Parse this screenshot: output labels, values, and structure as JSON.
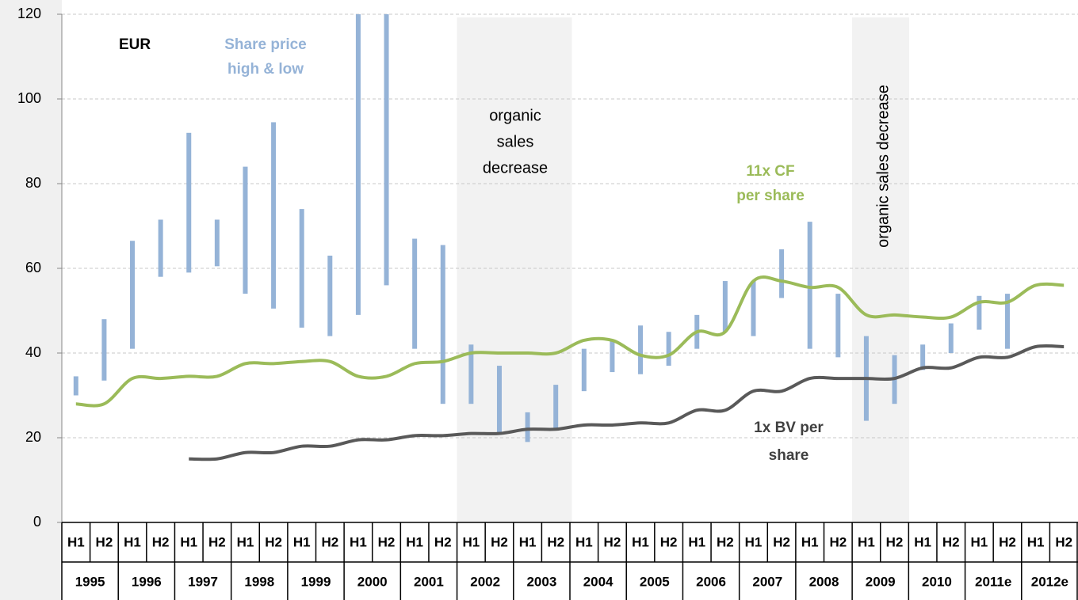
{
  "chart_data": {
    "type": "range-bar-and-line",
    "unit_label": "EUR",
    "categories": [
      "H1",
      "H2",
      "H1",
      "H2",
      "H1",
      "H2",
      "H1",
      "H2",
      "H1",
      "H2",
      "H1",
      "H2",
      "H1",
      "H2",
      "H1",
      "H2",
      "H1",
      "H2",
      "H1",
      "H2",
      "H1",
      "H2",
      "H1",
      "H2",
      "H1",
      "H2",
      "H1",
      "H2",
      "H1",
      "H2",
      "H1",
      "H2",
      "H1",
      "H2",
      "H1",
      "H2"
    ],
    "years": [
      "1995",
      "1996",
      "1997",
      "1998",
      "1999",
      "2000",
      "2001",
      "2002",
      "2003",
      "2004",
      "2005",
      "2006",
      "2007",
      "2008",
      "2009",
      "2010",
      "2011e",
      "2012e"
    ],
    "ylim": [
      0,
      120
    ],
    "yticks": [
      0,
      20,
      40,
      60,
      80,
      100,
      120
    ],
    "grid": true,
    "series": [
      {
        "name": [
          "Share price",
          "high & low"
        ],
        "color": "#95b3d7",
        "low": [
          30,
          33.5,
          41,
          58,
          59,
          60.5,
          54,
          50.5,
          46,
          44,
          49,
          56,
          41,
          28,
          28,
          21,
          19,
          22,
          31,
          35.5,
          35,
          37,
          41,
          45,
          44,
          53,
          41,
          39,
          24,
          28,
          36,
          40,
          45.5,
          41,
          null,
          null
        ],
        "high": [
          34.5,
          48,
          66.5,
          71.5,
          92,
          71.5,
          84,
          94.5,
          74,
          63,
          120,
          120,
          67,
          65.5,
          42,
          37,
          26,
          32.5,
          41,
          43,
          46.5,
          45,
          49,
          57,
          57,
          64.5,
          71,
          54,
          44,
          39.5,
          42,
          47,
          53.5,
          54,
          null,
          null
        ]
      },
      {
        "name": [
          "11x CF",
          "per share"
        ],
        "color": "#9bbb59",
        "values": [
          28,
          28,
          34,
          34,
          34.5,
          34.5,
          37.5,
          37.5,
          38,
          38,
          34.5,
          34.5,
          37.5,
          38,
          40,
          40,
          40,
          40,
          43,
          43,
          39.5,
          39.5,
          45,
          45,
          57,
          57,
          55.5,
          55.5,
          49,
          49,
          48.5,
          48.5,
          52,
          52,
          56,
          56
        ]
      },
      {
        "name": [
          "1x BV per",
          "share"
        ],
        "color": "#595959",
        "values": [
          null,
          null,
          null,
          null,
          15,
          15,
          16.5,
          16.5,
          18,
          18,
          19.5,
          19.5,
          20.5,
          20.5,
          21,
          21,
          22,
          22,
          23,
          23,
          23.5,
          23.5,
          26.5,
          26.5,
          31,
          31,
          34,
          34,
          34,
          34,
          36.5,
          36.5,
          39,
          39,
          41.5,
          41.5
        ]
      }
    ],
    "annotations": [
      {
        "text": [
          "organic",
          "sales",
          "decrease"
        ]
      },
      {
        "text": [
          "organic sales  decrease"
        ]
      }
    ]
  }
}
